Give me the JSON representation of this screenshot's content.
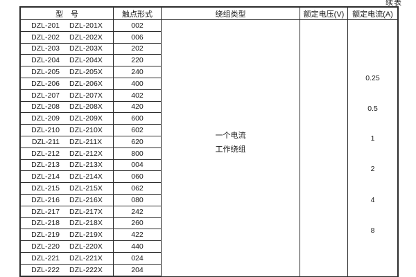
{
  "page": {
    "continued_label": "续表"
  },
  "table": {
    "headers": {
      "model": "型　号",
      "contact_form": "触点形式",
      "winding_type": "绕组类型",
      "rated_voltage": "额定电压(V)",
      "rated_current": "额定电流(A)"
    },
    "rows": [
      {
        "model_a": "DZL-201",
        "model_b": "DZL-201X",
        "contact": "002"
      },
      {
        "model_a": "DZL-202",
        "model_b": "DZL-202X",
        "contact": "006"
      },
      {
        "model_a": "DZL-203",
        "model_b": "DZL-203X",
        "contact": "202"
      },
      {
        "model_a": "DZL-204",
        "model_b": "DZL-204X",
        "contact": "220"
      },
      {
        "model_a": "DZL-205",
        "model_b": "DZL-205X",
        "contact": "240"
      },
      {
        "model_a": "DZL-206",
        "model_b": "DZL-206X",
        "contact": "400"
      },
      {
        "model_a": "DZL-207",
        "model_b": "DZL-207X",
        "contact": "402"
      },
      {
        "model_a": "DZL-208",
        "model_b": "DZL-208X",
        "contact": "420"
      },
      {
        "model_a": "DZL-209",
        "model_b": "DZL-209X",
        "contact": "600"
      },
      {
        "model_a": "DZL-210",
        "model_b": "DZL-210X",
        "contact": "602"
      },
      {
        "model_a": "DZL-211",
        "model_b": "DZL-211X",
        "contact": "620"
      },
      {
        "model_a": "DZL-212",
        "model_b": "DZL-212X",
        "contact": "800"
      },
      {
        "model_a": "DZL-213",
        "model_b": "DZL-213X",
        "contact": "004"
      },
      {
        "model_a": "DZL-214",
        "model_b": "DZL-214X",
        "contact": "060"
      },
      {
        "model_a": "DZL-215",
        "model_b": "DZL-215X",
        "contact": "062"
      },
      {
        "model_a": "DZL-216",
        "model_b": "DZL-216X",
        "contact": "080"
      },
      {
        "model_a": "DZL-217",
        "model_b": "DZL-217X",
        "contact": "242"
      },
      {
        "model_a": "DZL-218",
        "model_b": "DZL-218X",
        "contact": "260"
      },
      {
        "model_a": "DZL-219",
        "model_b": "DZL-219X",
        "contact": "422"
      },
      {
        "model_a": "DZL-220",
        "model_b": "DZL-220X",
        "contact": "440"
      },
      {
        "model_a": "DZL-221",
        "model_b": "DZL-221X",
        "contact": "024"
      },
      {
        "model_a": "DZL-222",
        "model_b": "DZL-222X",
        "contact": "204"
      }
    ],
    "winding_type_lines": [
      "一个电流",
      "工作绕组"
    ],
    "rated_voltage_value": "",
    "rated_current_groups": [
      {
        "label": "0.25",
        "row_anchor": 5.0
      },
      {
        "label": "0.5",
        "row_anchor": 7.6
      },
      {
        "label": "1",
        "row_anchor": 10.2
      },
      {
        "label": "2",
        "row_anchor": 12.8
      },
      {
        "label": "4",
        "row_anchor": 15.5
      },
      {
        "label": "8",
        "row_anchor": 18.1
      }
    ]
  }
}
